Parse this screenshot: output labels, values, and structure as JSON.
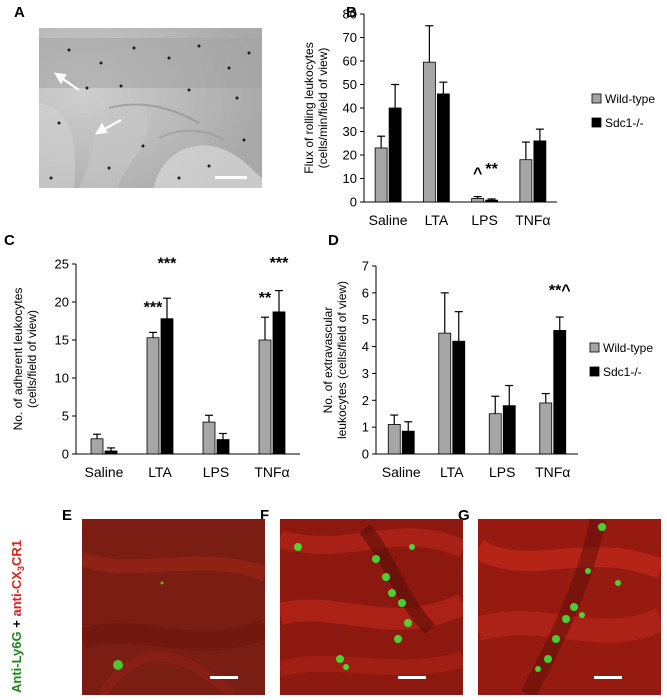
{
  "panel_labels": {
    "a": "A",
    "b": "B",
    "c": "C",
    "d": "D",
    "e": "E",
    "f": "F",
    "g": "G"
  },
  "side_label": {
    "green_part": "Anti-Ly6G",
    "plus": " + ",
    "red_prefix": "anti-CX",
    "red_sub": "3",
    "red_suffix": "CR1",
    "green_color": "#1a8a1a",
    "red_color": "#e0201a"
  },
  "colors": {
    "wild_type": "#a6a6a6",
    "sdc1": "#000000",
    "micro_bg": "#8c1a12",
    "cell": "#3dff3d"
  },
  "chart_data": [
    {
      "panel": "B",
      "type": "bar",
      "ylabel_lines": [
        "Flux of rolling leukocytes",
        "(cells/min/field of view)"
      ],
      "categories": [
        "Saline",
        "LTA",
        "LPS",
        "TNFα"
      ],
      "ylim": [
        0,
        80
      ],
      "yticks": [
        0,
        10,
        20,
        30,
        40,
        50,
        60,
        70,
        80
      ],
      "series": [
        {
          "name": "Wild-type",
          "values": [
            23,
            59.5,
            1.5,
            18
          ],
          "errors": [
            5,
            15.5,
            0.8,
            7.5
          ]
        },
        {
          "name": "Sdc1-/-",
          "values": [
            40,
            46,
            0.8,
            26
          ],
          "errors": [
            10,
            5,
            0.5,
            5
          ]
        }
      ],
      "annotations": [
        {
          "text": "^",
          "cat": 2,
          "series": 0,
          "y": 10
        },
        {
          "text": "**",
          "cat": 2,
          "series": 1,
          "y": 12
        }
      ],
      "legend": [
        "Wild-type",
        "Sdc1-/-"
      ],
      "legend_position": "right"
    },
    {
      "panel": "C",
      "type": "bar",
      "ylabel_lines": [
        "No. of adherent leukocytes",
        "(cells/field of view)"
      ],
      "categories": [
        "Saline",
        "LTA",
        "LPS",
        "TNFα"
      ],
      "ylim": [
        0,
        25
      ],
      "yticks": [
        0,
        5,
        10,
        15,
        20,
        25
      ],
      "series": [
        {
          "name": "Wild-type",
          "values": [
            2,
            15.3,
            4.2,
            15
          ],
          "errors": [
            0.6,
            0.7,
            0.9,
            3
          ]
        },
        {
          "name": "Sdc1-/-",
          "values": [
            0.4,
            17.8,
            1.9,
            18.7
          ],
          "errors": [
            0.4,
            2.7,
            0.8,
            2.8
          ]
        }
      ],
      "annotations": [
        {
          "text": "***",
          "cat": 1,
          "series": 0,
          "y": 18.6
        },
        {
          "text": "***",
          "cat": 1,
          "series": 1,
          "y": 24.4
        },
        {
          "text": "**",
          "cat": 3,
          "series": 0,
          "y": 19.9
        },
        {
          "text": "***",
          "cat": 3,
          "series": 1,
          "y": 24.5
        }
      ]
    },
    {
      "panel": "D",
      "type": "bar",
      "ylabel_lines": [
        "No. of extravascular",
        "leukocytes (cells/field of view)"
      ],
      "categories": [
        "Saline",
        "LTA",
        "LPS",
        "TNFα"
      ],
      "ylim": [
        0,
        7
      ],
      "yticks": [
        0,
        1,
        2,
        3,
        4,
        5,
        6,
        7
      ],
      "series": [
        {
          "name": "Wild-type",
          "values": [
            1.1,
            4.5,
            1.5,
            1.9
          ],
          "errors": [
            0.35,
            1.5,
            0.65,
            0.35
          ]
        },
        {
          "name": "Sdc1-/-",
          "values": [
            0.85,
            4.2,
            1.8,
            4.6
          ],
          "errors": [
            0.35,
            1.1,
            0.75,
            0.5
          ]
        }
      ],
      "annotations": [
        {
          "text": "**^",
          "cat": 3,
          "series": 1,
          "y": 5.9
        }
      ],
      "legend": [
        "Wild-type",
        "Sdc1-/-"
      ],
      "legend_position": "right"
    }
  ]
}
